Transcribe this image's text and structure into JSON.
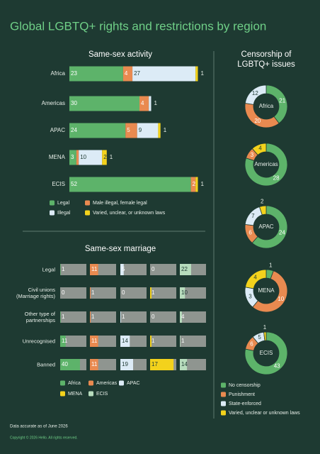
{
  "title": "Global LGBTQ+ rights and restrictions by region",
  "chart_data": [
    {
      "type": "stacked-bar",
      "title": "Same-sex activity",
      "categories": [
        "Africa",
        "Americas",
        "APAC",
        "MENA",
        "ECIS"
      ],
      "series": [
        {
          "name": "Legal",
          "color": "#5db36a",
          "values": [
            23,
            30,
            24,
            3,
            52
          ]
        },
        {
          "name": "Male illegal, female legal",
          "color": "#e98a50",
          "values": [
            4,
            4,
            5,
            1,
            2
          ]
        },
        {
          "name": "Illegal",
          "color": "#dcebf6",
          "values": [
            27,
            1,
            9,
            10,
            null
          ]
        },
        {
          "name": "Varied, unclear, or unknown laws",
          "color": "#f3d21c",
          "values": [
            1,
            null,
            1,
            2,
            1
          ]
        }
      ]
    },
    {
      "type": "grid-bar",
      "title": "Same-sex marriage",
      "categories": [
        "Legal",
        "Civil unions (Marriage rights)",
        "Other type of partnerships",
        "Unrecognised",
        "Banned"
      ],
      "series": [
        {
          "name": "Africa",
          "color": "#5db36a",
          "values": [
            1,
            0,
            1,
            11,
            40
          ]
        },
        {
          "name": "Americas",
          "color": "#e98a50",
          "values": [
            11,
            1,
            1,
            11,
            11
          ]
        },
        {
          "name": "APAC",
          "color": "#dcebf6",
          "values": [
            5,
            0,
            1,
            14,
            19
          ]
        },
        {
          "name": "MENA",
          "color": "#f3d21c",
          "values": [
            0,
            1,
            0,
            1,
            17
          ]
        },
        {
          "name": "ECIS",
          "color": "#b7dcbd",
          "values": [
            22,
            10,
            4,
            1,
            14
          ]
        }
      ]
    },
    {
      "type": "donut",
      "title": "Censorship of LGBTQ+ issues",
      "categories": [
        "Africa",
        "Americas",
        "APAC",
        "MENA",
        "ECIS"
      ],
      "series": [
        {
          "name": "No censorship",
          "color": "#5db36a",
          "values": [
            21,
            28,
            24,
            1,
            43
          ]
        },
        {
          "name": "Punishment",
          "color": "#e98a50",
          "values": [
            20,
            3,
            6,
            10,
            6
          ]
        },
        {
          "name": "State-enforced",
          "color": "#dcebf6",
          "values": [
            12,
            null,
            7,
            3,
            5
          ]
        },
        {
          "name": "Varied, unclear or unknown laws",
          "color": "#f3d21c",
          "values": [
            null,
            4,
            2,
            4,
            1
          ]
        }
      ]
    }
  ],
  "footer": {
    "note": "Data accurate as of June 2026",
    "copyright": "Copyright © 2026 Hello. All rights reserved."
  }
}
